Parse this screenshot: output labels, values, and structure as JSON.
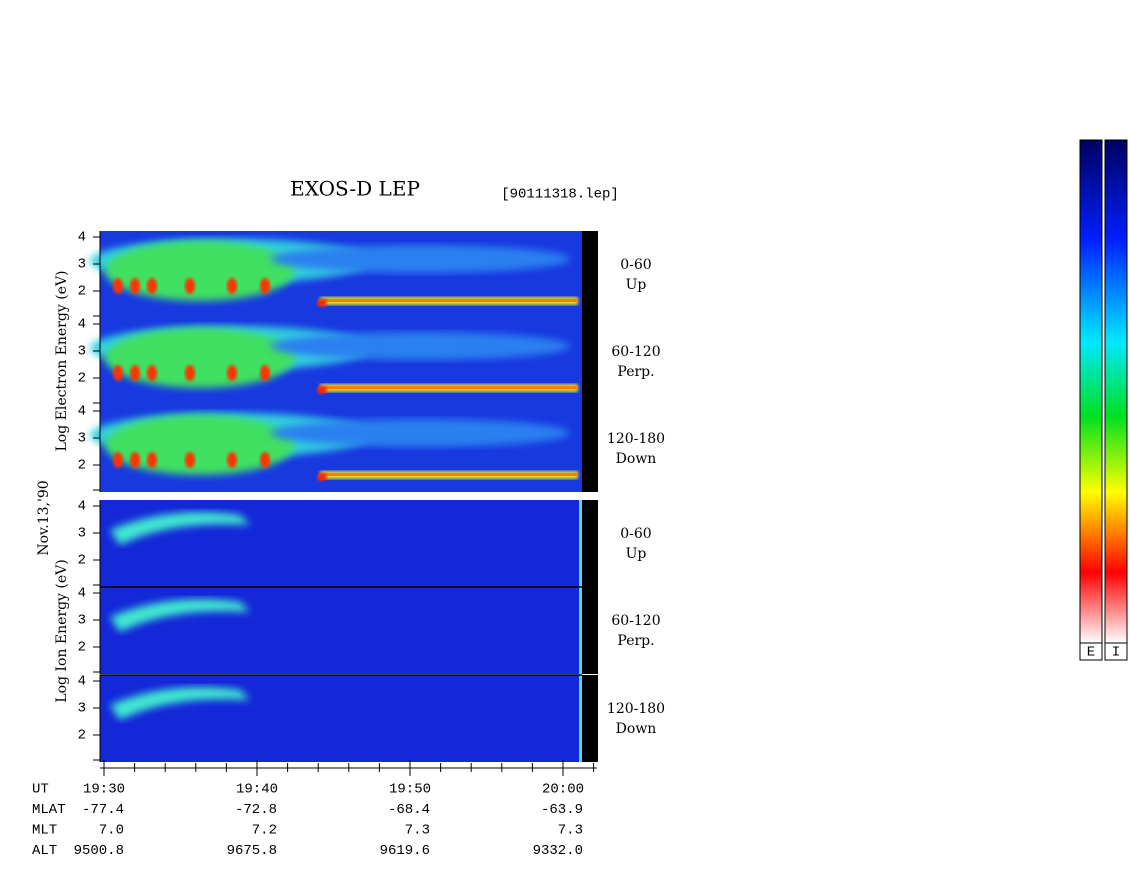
{
  "header": {
    "title": "EXOS-D LEP",
    "file": "[90111318.lep]"
  },
  "date": "Nov.13,'90",
  "electron_axis_label": "Log  Electron  Energy (eV)",
  "ion_axis_label": "Log  Ion  Energy (eV)",
  "y_tick_labels": [
    "4",
    "3",
    "2"
  ],
  "panels": [
    {
      "range": "0-60",
      "direction": "Up"
    },
    {
      "range": "60-120",
      "direction": "Perp."
    },
    {
      "range": "120-180",
      "direction": "Down"
    },
    {
      "range": "0-60",
      "direction": "Up"
    },
    {
      "range": "60-120",
      "direction": "Perp."
    },
    {
      "range": "120-180",
      "direction": "Down"
    }
  ],
  "ephemeris": [
    {
      "label": "UT",
      "values": [
        "19:30",
        "19:40",
        "19:50",
        "20:00"
      ]
    },
    {
      "label": "MLAT",
      "values": [
        "-77.4",
        "-72.8",
        "-68.4",
        "-63.9"
      ]
    },
    {
      "label": "MLT",
      "values": [
        "7.0",
        "7.2",
        "7.3",
        "7.3"
      ]
    },
    {
      "label": "ALT",
      "values": [
        "9500.8",
        "9675.8",
        "9619.6",
        "9332.0"
      ]
    }
  ],
  "colorbars": [
    "E",
    "I"
  ]
}
